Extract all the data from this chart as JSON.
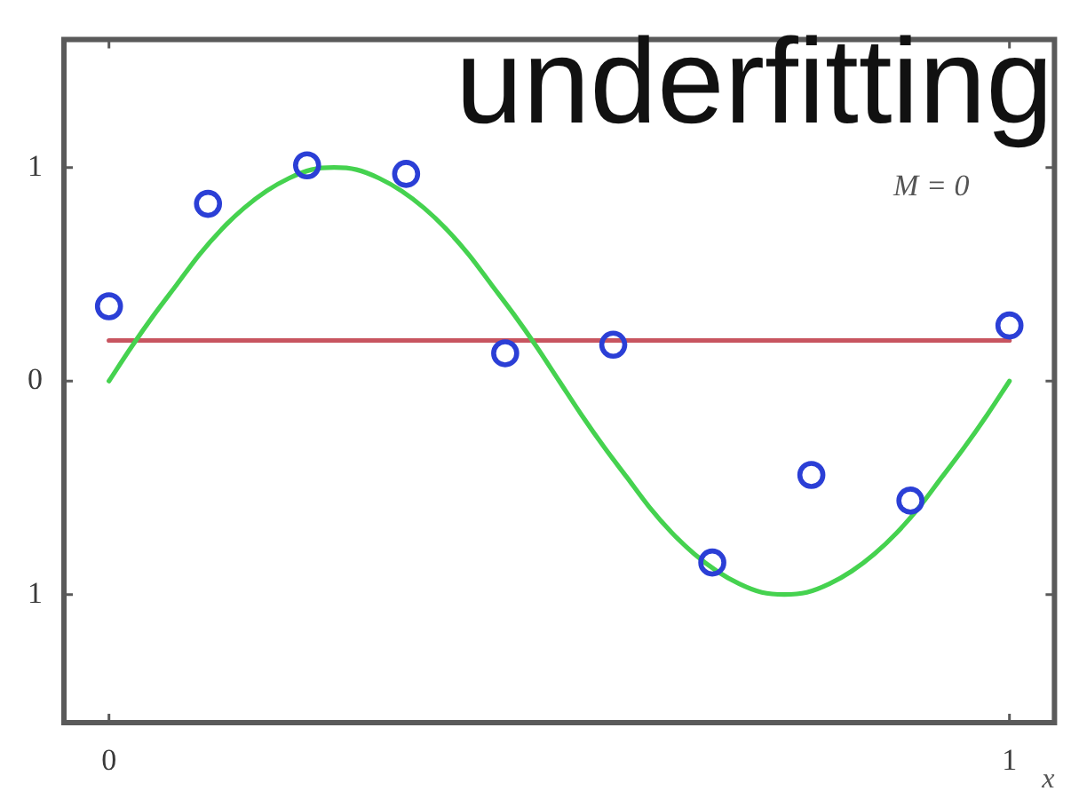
{
  "chart_data": {
    "type": "scatter",
    "title": "underfitting",
    "xlabel": "x",
    "annotations": [
      "M = 0"
    ],
    "xlim": [
      -0.05,
      1.05
    ],
    "ylim": [
      -1.6,
      1.6
    ],
    "xticks": [
      0,
      1
    ],
    "yticks": [
      {
        "value": -1,
        "label": "1"
      },
      0,
      1
    ],
    "series": [
      {
        "marker": "circle",
        "color": "#2b3fd6",
        "x": [
          0,
          0.11,
          0.22,
          0.33,
          0.44,
          0.56,
          0.67,
          0.78,
          0.89,
          1
        ],
        "values": [
          0.35,
          0.83,
          1.01,
          0.97,
          0.13,
          0.17,
          -0.85,
          -0.44,
          -0.56,
          0.26
        ]
      },
      {
        "type": "line",
        "marker": "none",
        "color": "#45d24f",
        "x": [
          0,
          0.025,
          0.05,
          0.075,
          0.1,
          0.125,
          0.15,
          0.175,
          0.2,
          0.225,
          0.25,
          0.275,
          0.3,
          0.325,
          0.35,
          0.375,
          0.4,
          0.425,
          0.45,
          0.475,
          0.5,
          0.525,
          0.55,
          0.575,
          0.6,
          0.625,
          0.65,
          0.675,
          0.7,
          0.725,
          0.75,
          0.775,
          0.8,
          0.825,
          0.85,
          0.875,
          0.9,
          0.925,
          0.95,
          0.975,
          1
        ],
        "values": [
          0,
          0.16,
          0.31,
          0.45,
          0.59,
          0.71,
          0.81,
          0.89,
          0.95,
          0.99,
          1,
          0.99,
          0.95,
          0.89,
          0.81,
          0.71,
          0.59,
          0.45,
          0.31,
          0.16,
          0,
          -0.16,
          -0.31,
          -0.45,
          -0.59,
          -0.71,
          -0.81,
          -0.89,
          -0.95,
          -0.99,
          -1,
          -0.99,
          -0.95,
          -0.89,
          -0.81,
          -0.71,
          -0.59,
          -0.45,
          -0.31,
          -0.16,
          0
        ]
      },
      {
        "type": "line",
        "marker": "none",
        "color": "#c85560",
        "x": [
          0,
          1
        ],
        "values": [
          0.19,
          0.19
        ]
      }
    ]
  }
}
